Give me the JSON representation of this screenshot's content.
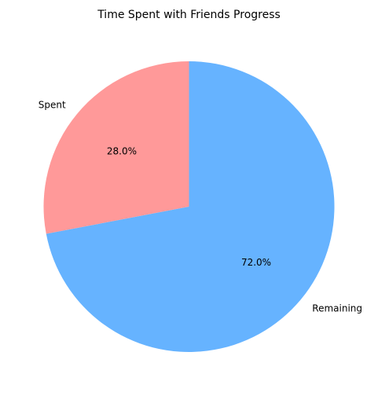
{
  "chart_data": {
    "type": "pie",
    "title": "Time Spent with Friends Progress",
    "labels": [
      "Spent",
      "Remaining"
    ],
    "values": [
      28.0,
      72.0
    ],
    "percent_labels": [
      "28.0%",
      "72.0%"
    ],
    "colors": [
      "#ff9999",
      "#66b3ff"
    ],
    "start_angle_deg": 90,
    "direction": "counterclockwise",
    "legend": "none"
  }
}
